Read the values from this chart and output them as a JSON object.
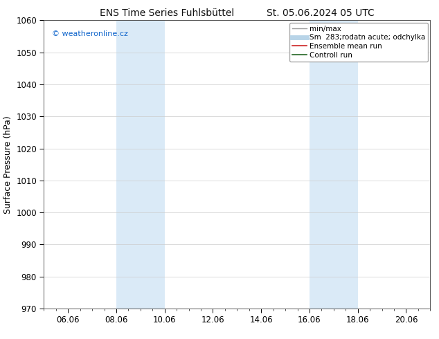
{
  "title_left": "ENS Time Series Fuhlsbüttel",
  "title_right": "St. 05.06.2024 05 UTC",
  "ylabel": "Surface Pressure (hPa)",
  "ylim": [
    970,
    1060
  ],
  "yticks": [
    970,
    980,
    990,
    1000,
    1010,
    1020,
    1030,
    1040,
    1050,
    1060
  ],
  "xtick_labels": [
    "06.06",
    "08.06",
    "10.06",
    "12.06",
    "14.06",
    "16.06",
    "18.06",
    "20.06"
  ],
  "xtick_positions": [
    1,
    3,
    5,
    7,
    9,
    11,
    13,
    15
  ],
  "xlim": [
    0,
    16
  ],
  "shade_bands": [
    {
      "start": 3,
      "end": 5
    },
    {
      "start": 11,
      "end": 13
    }
  ],
  "shade_color": "#daeaf7",
  "watermark_text": "© weatheronline.cz",
  "watermark_color": "#1166cc",
  "legend_entries": [
    {
      "label": "min/max",
      "color": "#999999",
      "lw": 1.0
    },
    {
      "label": "Sm  283;rodatn acute; odchylka",
      "color": "#b8d4e8",
      "lw": 5.0
    },
    {
      "label": "Ensemble mean run",
      "color": "#cc2222",
      "lw": 1.2
    },
    {
      "label": "Controll run",
      "color": "#226622",
      "lw": 1.2
    }
  ],
  "bg_color": "#ffffff",
  "grid_color": "#cccccc",
  "tick_label_fontsize": 8.5,
  "axis_label_fontsize": 9,
  "title_fontsize": 10,
  "legend_fontsize": 7.5
}
